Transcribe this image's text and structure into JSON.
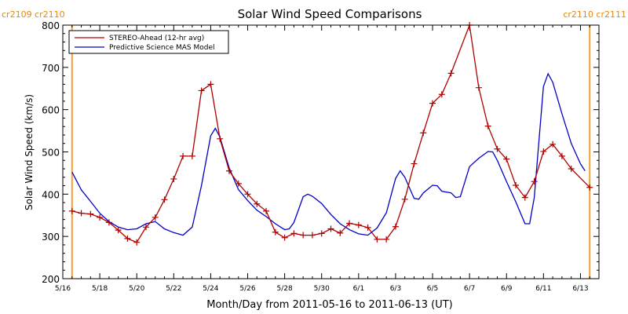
{
  "chart_data": {
    "type": "line",
    "title": "Solar Wind Speed Comparisons",
    "xlabel": "Month/Day from 2011-05-16 to 2011-06-13 (UT)",
    "ylabel": "Solar Wind Speed (km/s)",
    "xlim": [
      "2011-05-16",
      "2011-06-14"
    ],
    "ylim": [
      200,
      800
    ],
    "x_tick_labels": [
      "5/16",
      "5/18",
      "5/20",
      "5/22",
      "5/24",
      "5/26",
      "5/28",
      "5/30",
      "6/1",
      "6/3",
      "6/5",
      "6/7",
      "6/9",
      "6/11",
      "6/13"
    ],
    "y_tick_labels": [
      "200",
      "300",
      "400",
      "500",
      "600",
      "700",
      "800"
    ],
    "legend_position": "top-left",
    "carrington_markers": [
      {
        "label": "cr2109 cr2110",
        "x": "2011-05-16 12:00"
      },
      {
        "label": "cr2110 cr2111",
        "x": "2011-06-13 12:00"
      }
    ],
    "series": [
      {
        "name": "STEREO-Ahead (12-hr avg)",
        "color": "#b00000",
        "marker": "plus",
        "points": [
          [
            "2011-05-16 12:00",
            360
          ],
          [
            "2011-05-17 00:00",
            355
          ],
          [
            "2011-05-17 12:00",
            353
          ],
          [
            "2011-05-18 00:00",
            345
          ],
          [
            "2011-05-18 12:00",
            333
          ],
          [
            "2011-05-19 00:00",
            315
          ],
          [
            "2011-05-19 12:00",
            295
          ],
          [
            "2011-05-20 00:00",
            286
          ],
          [
            "2011-05-20 12:00",
            322
          ],
          [
            "2011-05-21 00:00",
            345
          ],
          [
            "2011-05-21 12:00",
            387
          ],
          [
            "2011-05-22 00:00",
            436
          ],
          [
            "2011-05-22 12:00",
            490
          ],
          [
            "2011-05-23 00:00",
            490
          ],
          [
            "2011-05-23 12:00",
            645
          ],
          [
            "2011-05-24 00:00",
            660
          ],
          [
            "2011-05-24 12:00",
            531
          ],
          [
            "2011-05-25 00:00",
            455
          ],
          [
            "2011-05-25 12:00",
            425
          ],
          [
            "2011-05-26 00:00",
            400
          ],
          [
            "2011-05-26 12:00",
            377
          ],
          [
            "2011-05-27 00:00",
            360
          ],
          [
            "2011-05-27 12:00",
            310
          ],
          [
            "2011-05-28 00:00",
            297
          ],
          [
            "2011-05-28 12:00",
            307
          ],
          [
            "2011-05-29 00:00",
            303
          ],
          [
            "2011-05-29 12:00",
            303
          ],
          [
            "2011-05-30 00:00",
            307
          ],
          [
            "2011-05-30 12:00",
            318
          ],
          [
            "2011-05-31 00:00",
            308
          ],
          [
            "2011-05-31 12:00",
            331
          ],
          [
            "2011-06-01 00:00",
            327
          ],
          [
            "2011-06-01 12:00",
            321
          ],
          [
            "2011-06-02 00:00",
            293
          ],
          [
            "2011-06-02 12:00",
            293
          ],
          [
            "2011-06-03 00:00",
            323
          ],
          [
            "2011-06-03 12:00",
            388
          ],
          [
            "2011-06-04 00:00",
            472
          ],
          [
            "2011-06-04 12:00",
            545
          ],
          [
            "2011-06-05 00:00",
            615
          ],
          [
            "2011-06-05 12:00",
            636
          ],
          [
            "2011-06-06 00:00",
            686
          ],
          [
            "2011-06-07 00:00",
            800
          ],
          [
            "2011-06-07 12:00",
            652
          ],
          [
            "2011-06-08 00:00",
            561
          ],
          [
            "2011-06-08 12:00",
            507
          ],
          [
            "2011-06-09 00:00",
            483
          ],
          [
            "2011-06-09 12:00",
            421
          ],
          [
            "2011-06-10 00:00",
            392
          ],
          [
            "2011-06-10 12:00",
            430
          ],
          [
            "2011-06-11 00:00",
            501
          ],
          [
            "2011-06-11 12:00",
            518
          ],
          [
            "2011-06-12 00:00",
            490
          ],
          [
            "2011-06-12 12:00",
            460
          ],
          [
            "2011-06-13 12:00",
            416
          ]
        ]
      },
      {
        "name": "Predictive Science MAS Model",
        "color": "#0000c8",
        "marker": "none",
        "points": [
          [
            "2011-05-16 12:00",
            452
          ],
          [
            "2011-05-17 00:00",
            410
          ],
          [
            "2011-05-17 12:00",
            383
          ],
          [
            "2011-05-18 00:00",
            355
          ],
          [
            "2011-05-18 12:00",
            335
          ],
          [
            "2011-05-19 00:00",
            322
          ],
          [
            "2011-05-19 12:00",
            316
          ],
          [
            "2011-05-20 00:00",
            318
          ],
          [
            "2011-05-20 12:00",
            330
          ],
          [
            "2011-05-21 00:00",
            335
          ],
          [
            "2011-05-21 12:00",
            318
          ],
          [
            "2011-05-22 00:00",
            309
          ],
          [
            "2011-05-22 12:00",
            303
          ],
          [
            "2011-05-23 00:00",
            322
          ],
          [
            "2011-05-23 12:00",
            420
          ],
          [
            "2011-05-24 00:00",
            538
          ],
          [
            "2011-05-24 06:00",
            556
          ],
          [
            "2011-05-24 12:00",
            535
          ],
          [
            "2011-05-25 00:00",
            462
          ],
          [
            "2011-05-25 12:00",
            411
          ],
          [
            "2011-05-26 00:00",
            385
          ],
          [
            "2011-05-26 12:00",
            362
          ],
          [
            "2011-05-27 00:00",
            347
          ],
          [
            "2011-05-27 12:00",
            330
          ],
          [
            "2011-05-28 00:00",
            316
          ],
          [
            "2011-05-28 06:00",
            318
          ],
          [
            "2011-05-28 12:00",
            333
          ],
          [
            "2011-05-29 00:00",
            394
          ],
          [
            "2011-05-29 06:00",
            400
          ],
          [
            "2011-05-29 12:00",
            395
          ],
          [
            "2011-05-30 00:00",
            378
          ],
          [
            "2011-05-30 12:00",
            352
          ],
          [
            "2011-05-31 00:00",
            330
          ],
          [
            "2011-05-31 12:00",
            316
          ],
          [
            "2011-06-01 00:00",
            306
          ],
          [
            "2011-06-01 12:00",
            303
          ],
          [
            "2011-06-02 00:00",
            320
          ],
          [
            "2011-06-02 12:00",
            356
          ],
          [
            "2011-06-03 00:00",
            437
          ],
          [
            "2011-06-03 06:00",
            455
          ],
          [
            "2011-06-03 12:00",
            440
          ],
          [
            "2011-06-04 00:00",
            390
          ],
          [
            "2011-06-04 06:00",
            388
          ],
          [
            "2011-06-04 12:00",
            403
          ],
          [
            "2011-06-05 00:00",
            421
          ],
          [
            "2011-06-05 06:00",
            420
          ],
          [
            "2011-06-05 12:00",
            407
          ],
          [
            "2011-06-06 00:00",
            403
          ],
          [
            "2011-06-06 06:00",
            392
          ],
          [
            "2011-06-06 12:00",
            394
          ],
          [
            "2011-06-07 00:00",
            465
          ],
          [
            "2011-06-07 12:00",
            485
          ],
          [
            "2011-06-08 00:00",
            501
          ],
          [
            "2011-06-08 06:00",
            500
          ],
          [
            "2011-06-08 12:00",
            480
          ],
          [
            "2011-06-09 00:00",
            430
          ],
          [
            "2011-06-09 12:00",
            382
          ],
          [
            "2011-06-10 00:00",
            330
          ],
          [
            "2011-06-10 06:00",
            330
          ],
          [
            "2011-06-10 12:00",
            392
          ],
          [
            "2011-06-11 00:00",
            655
          ],
          [
            "2011-06-11 06:00",
            685
          ],
          [
            "2011-06-11 12:00",
            665
          ],
          [
            "2011-06-12 00:00",
            590
          ],
          [
            "2011-06-12 12:00",
            520
          ],
          [
            "2011-06-13 00:00",
            472
          ],
          [
            "2011-06-13 06:00",
            455
          ]
        ]
      }
    ]
  }
}
